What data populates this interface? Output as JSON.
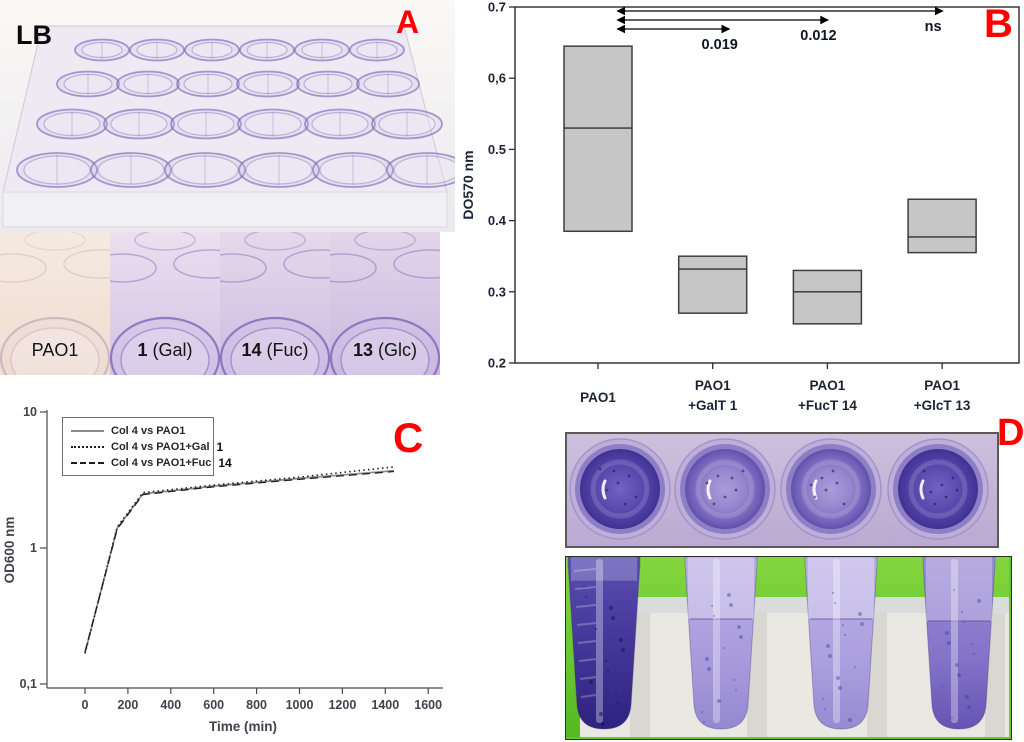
{
  "panels": {
    "a": {
      "letter": "A",
      "corner_label": "LB",
      "sub_images": [
        {
          "num": "",
          "label": "PAO1"
        },
        {
          "num": "1",
          "label": " (Gal)"
        },
        {
          "num": "14",
          "label": " (Fuc)"
        },
        {
          "num": "13",
          "label": " (Glc)"
        }
      ]
    },
    "b": {
      "letter": "B"
    },
    "c": {
      "letter": "C"
    },
    "d": {
      "letter": "D"
    }
  },
  "colors": {
    "panel_letter": "#fe0000",
    "box_fill": "#c6c6c6",
    "box_stroke": "#3f3f3f",
    "crystal_violet_dark": "#4a3da0",
    "crystal_violet_light": "#a89dd8",
    "green_background": "#6ac52f"
  },
  "chart_data": [
    {
      "type": "box",
      "panel": "B",
      "ylabel": "DO570 nm",
      "ylim": [
        0.2,
        0.7
      ],
      "yticks": [
        {
          "v": 0.7,
          "label": "0.7"
        },
        {
          "v": 0.6,
          "label": "0,6"
        },
        {
          "v": 0.5,
          "label": "0.5"
        },
        {
          "v": 0.4,
          "label": "0.4"
        },
        {
          "v": 0.3,
          "label": "0.3"
        },
        {
          "v": 0.2,
          "label": "0.2"
        }
      ],
      "categories": [
        {
          "line1": "PAO1",
          "line2": "",
          "num": ""
        },
        {
          "line1": "PAO1",
          "line2": "+GalT ",
          "num": "1"
        },
        {
          "line1": "PAO1",
          "line2": "+FucT ",
          "num": "14"
        },
        {
          "line1": "PAO1",
          "line2": "+GlcT ",
          "num": "13"
        }
      ],
      "boxes": [
        {
          "low": 0.385,
          "median": 0.53,
          "high": 0.645
        },
        {
          "low": 0.27,
          "median": 0.332,
          "high": 0.35
        },
        {
          "low": 0.255,
          "median": 0.3,
          "high": 0.33
        },
        {
          "low": 0.355,
          "median": 0.377,
          "high": 0.43
        }
      ],
      "comparisons": [
        {
          "from": 0,
          "to": 1,
          "p": "0.019"
        },
        {
          "from": 0,
          "to": 2,
          "p": "0.012"
        },
        {
          "from": 0,
          "to": 3,
          "p": "ns"
        }
      ]
    },
    {
      "type": "line",
      "panel": "C",
      "xlabel": "Time (min)",
      "ylabel": "OD600 nm",
      "yscale": "log",
      "xticks": [
        0,
        200,
        400,
        600,
        800,
        1000,
        1200,
        1400,
        1600
      ],
      "yticks": [
        {
          "v": 10,
          "label": "10"
        },
        {
          "v": 1,
          "label": "1"
        },
        {
          "v": 0.1,
          "label": "0,1"
        }
      ],
      "series": [
        {
          "name": "Col 4 vs PAO1",
          "num": "",
          "style": "solid",
          "x": [
            0,
            150,
            270,
            600,
            1000,
            1440
          ],
          "y": [
            0.17,
            1.4,
            2.5,
            2.85,
            3.25,
            3.7
          ]
        },
        {
          "name": "Col 4 vs PAO1+Gal",
          "num": "1",
          "style": "dotted",
          "x": [
            0,
            150,
            270,
            600,
            1000,
            1440
          ],
          "y": [
            0.168,
            1.43,
            2.55,
            2.9,
            3.32,
            3.95
          ]
        },
        {
          "name": "Col 4 vs PAO1+Fuc",
          "num": "14",
          "style": "dashed",
          "x": [
            0,
            150,
            270,
            600,
            1000,
            1440
          ],
          "y": [
            0.172,
            1.38,
            2.47,
            2.82,
            3.2,
            3.65
          ]
        }
      ]
    }
  ]
}
